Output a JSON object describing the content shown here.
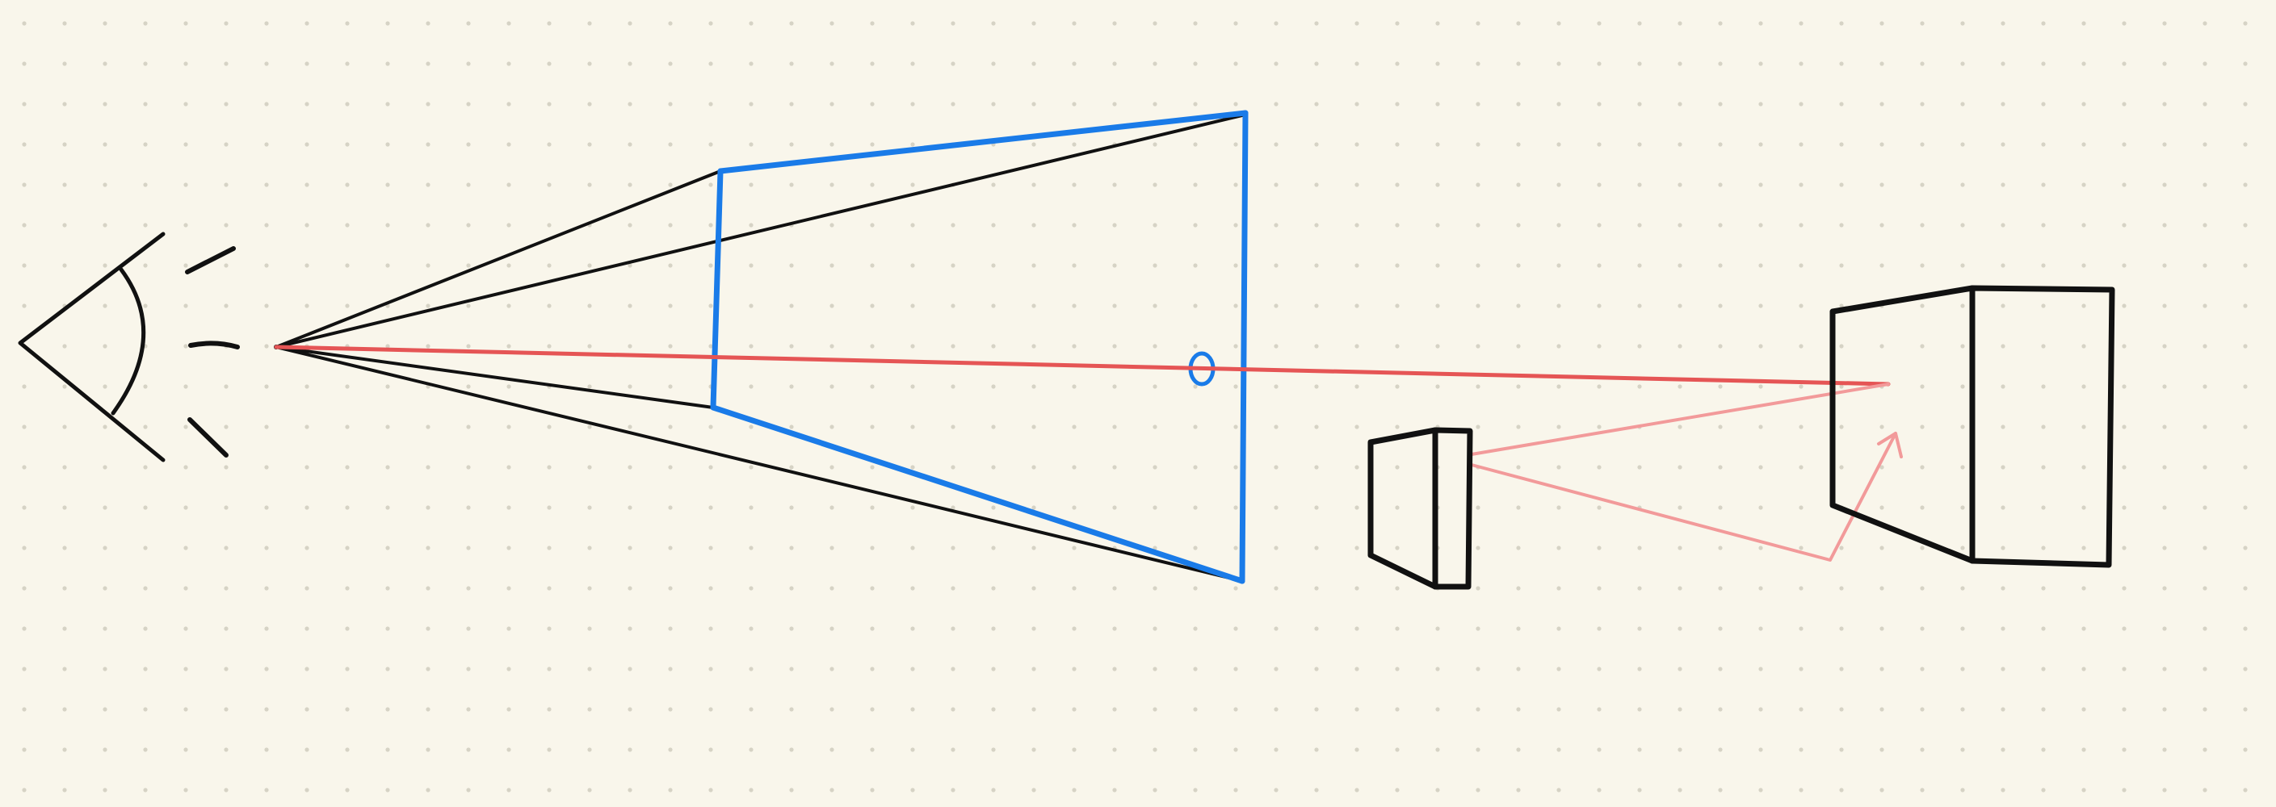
{
  "colors": {
    "background": "#f9f6eb",
    "grid_dot": "#d6d3c5",
    "ink": "#111111",
    "frustum_blue": "#1a7be8",
    "ray_red": "#e55555",
    "ray_pink": "#f29a9a"
  },
  "diagram": {
    "description_icons": [
      "eye-icon",
      "sight-ticks",
      "frustum",
      "near-plane",
      "far-plane",
      "view-ray",
      "small-box",
      "large-box",
      "reflected-ray"
    ]
  }
}
